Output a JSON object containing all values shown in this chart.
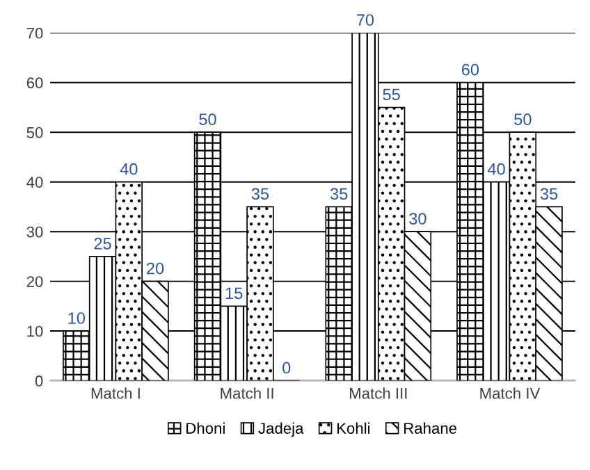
{
  "chart_data": {
    "type": "bar",
    "categories": [
      "Match I",
      "Match II",
      "Match III",
      "Match IV"
    ],
    "series": [
      {
        "name": "Dhoni",
        "color": "#000000",
        "values": [
          10,
          50,
          35,
          60
        ]
      },
      {
        "name": "Jadeja",
        "color": "#000000",
        "values": [
          25,
          15,
          70,
          40
        ]
      },
      {
        "name": "Kohli",
        "color": "#000000",
        "values": [
          40,
          35,
          55,
          50
        ]
      },
      {
        "name": "Rahane",
        "color": "#000000",
        "values": [
          20,
          0,
          30,
          35
        ]
      }
    ],
    "ylim": [
      0,
      70
    ],
    "yticks": [
      0,
      10,
      20,
      30,
      40,
      50,
      60,
      70
    ],
    "grid": "y",
    "legend": "bottom",
    "data_labels": true
  }
}
